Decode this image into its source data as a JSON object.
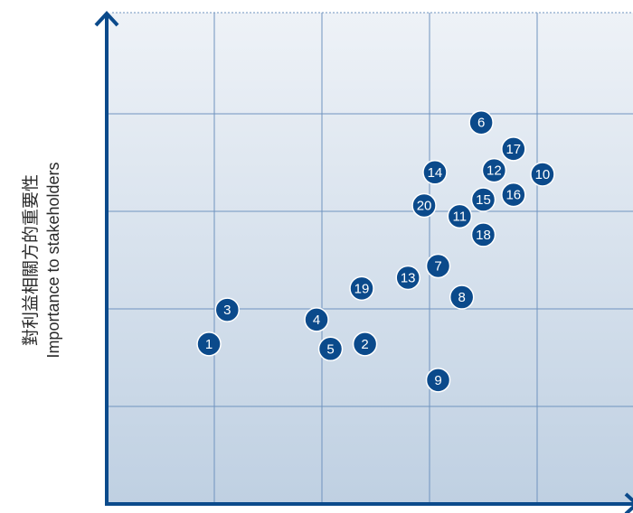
{
  "chart_data": {
    "type": "scatter",
    "title": "",
    "xlabel": "",
    "ylabel_lines": [
      "對利益相關方的重要性",
      "Importance to stakeholders"
    ],
    "xlim": [
      0,
      5
    ],
    "ylim": [
      0,
      5
    ],
    "grid": true,
    "colors": {
      "point": "#0b4a8b",
      "axis": "#0b4a8b",
      "grid": "#6f93bf",
      "bg_top": "#eef2f7",
      "bg_bottom": "#bfd0e2"
    },
    "points": [
      {
        "label": "1",
        "x": 0.95,
        "y": 1.64
      },
      {
        "label": "2",
        "x": 2.4,
        "y": 1.64
      },
      {
        "label": "3",
        "x": 1.12,
        "y": 1.99
      },
      {
        "label": "4",
        "x": 1.95,
        "y": 1.89
      },
      {
        "label": "5",
        "x": 2.08,
        "y": 1.59
      },
      {
        "label": "6",
        "x": 3.48,
        "y": 3.91
      },
      {
        "label": "7",
        "x": 3.08,
        "y": 2.44
      },
      {
        "label": "8",
        "x": 3.3,
        "y": 2.12
      },
      {
        "label": "9",
        "x": 3.08,
        "y": 1.27
      },
      {
        "label": "10",
        "x": 4.05,
        "y": 3.38
      },
      {
        "label": "11",
        "x": 3.28,
        "y": 2.95
      },
      {
        "label": "12",
        "x": 3.6,
        "y": 3.42
      },
      {
        "label": "13",
        "x": 2.8,
        "y": 2.32
      },
      {
        "label": "14",
        "x": 3.05,
        "y": 3.4
      },
      {
        "label": "15",
        "x": 3.5,
        "y": 3.12
      },
      {
        "label": "16",
        "x": 3.78,
        "y": 3.17
      },
      {
        "label": "17",
        "x": 3.78,
        "y": 3.64
      },
      {
        "label": "18",
        "x": 3.5,
        "y": 2.76
      },
      {
        "label": "19",
        "x": 2.37,
        "y": 2.21
      },
      {
        "label": "20",
        "x": 2.95,
        "y": 3.06
      }
    ]
  }
}
